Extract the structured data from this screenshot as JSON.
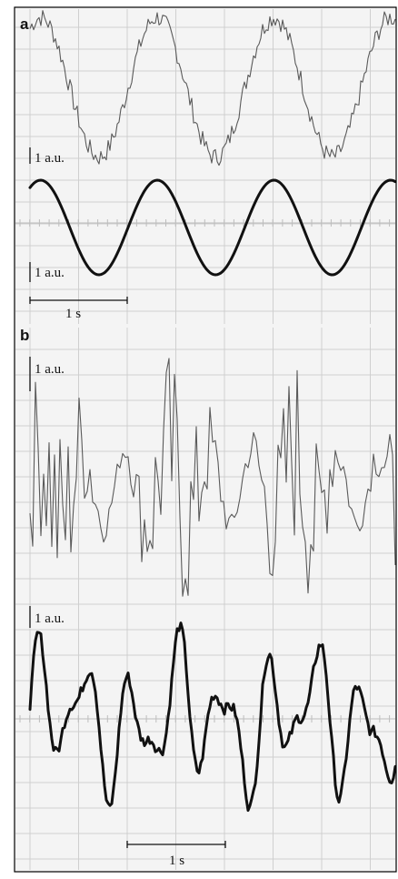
{
  "panels": {
    "a": {
      "letter": "a",
      "amplitude_scale": "1 a.u.",
      "time_scale": "1 s"
    },
    "b": {
      "letter": "b",
      "amplitude_scale_top": "1 a.u.",
      "amplitude_scale_bottom": "1 a.u.",
      "time_scale": "1 s"
    }
  },
  "chart_data": [
    {
      "type": "line",
      "panel": "a",
      "title": "",
      "xlabel": "",
      "ylabel": "",
      "grid": true,
      "x_range_s": [
        0,
        3.8
      ],
      "series": [
        {
          "style": "thin-noisy",
          "period_s": 1.2,
          "amplitude_au": 1.6,
          "noise_au": 0.22
        },
        {
          "style": "thick-smooth",
          "period_s": 1.2,
          "amplitude_au": 1.0,
          "noise_au": 0
        }
      ],
      "scale_bars": {
        "amplitude": "1 a.u.",
        "time": "1 s"
      }
    },
    {
      "type": "line",
      "panel": "b",
      "title": "",
      "xlabel": "",
      "ylabel": "",
      "grid": true,
      "x_range_s": [
        0,
        3.7
      ],
      "series": [
        {
          "style": "thin-noisy",
          "amplitude_au": 2.4,
          "noise_au": 1.5
        },
        {
          "style": "thick-irregular",
          "amplitude_au": 1.6,
          "noise_au": 0.35
        }
      ],
      "scale_bars": {
        "amplitude": "1 a.u.",
        "time": "1 s"
      }
    }
  ],
  "colors": {
    "thin_trace": "#5a5a5a",
    "thick_trace": "#111111",
    "grid": "#cfcfcf",
    "background": "#f4f4f4"
  }
}
